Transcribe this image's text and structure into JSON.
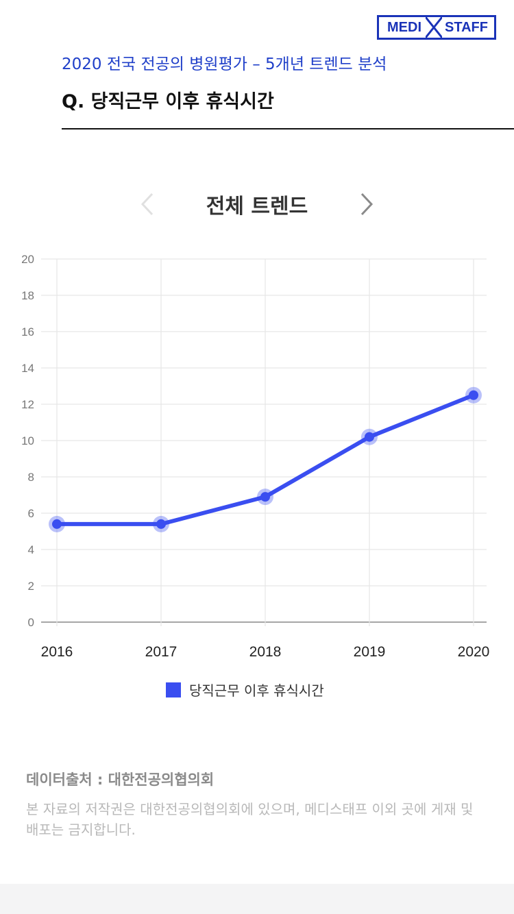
{
  "brand": {
    "left": "MEDI",
    "right": "STAFF",
    "color": "#1a33b8"
  },
  "header": {
    "subtitle": "2020 전국 전공의 병원평가 – 5개년 트렌드 분석",
    "question": "Q. 당직근무 이후 휴식시간"
  },
  "nav": {
    "title": "전체 트렌드",
    "prev_icon": "chevron-left-icon",
    "next_icon": "chevron-right-icon"
  },
  "chart_data": {
    "type": "line",
    "title": "",
    "xlabel": "",
    "ylabel": "",
    "categories": [
      "2016",
      "2017",
      "2018",
      "2019",
      "2020"
    ],
    "series": [
      {
        "name": "당직근무 이후 휴식시간",
        "values": [
          5.4,
          5.4,
          6.9,
          10.2,
          12.5
        ],
        "color": "#3a4ef0"
      }
    ],
    "ylim": [
      0,
      20
    ],
    "yticks": [
      "0",
      "2",
      "4",
      "6",
      "8",
      "10",
      "12",
      "14",
      "16",
      "18",
      "20"
    ],
    "grid": true,
    "legend": "bottom"
  },
  "legend": {
    "label": "당직근무 이후 휴식시간",
    "color": "#3a4ef0"
  },
  "footer": {
    "source": "데이터출처 : 대한전공의협의회",
    "notice": "본 자료의 저작권은 대한전공의협의회에 있으며, 메디스태프 이외 곳에 게재 및 배포는 금지합니다."
  }
}
